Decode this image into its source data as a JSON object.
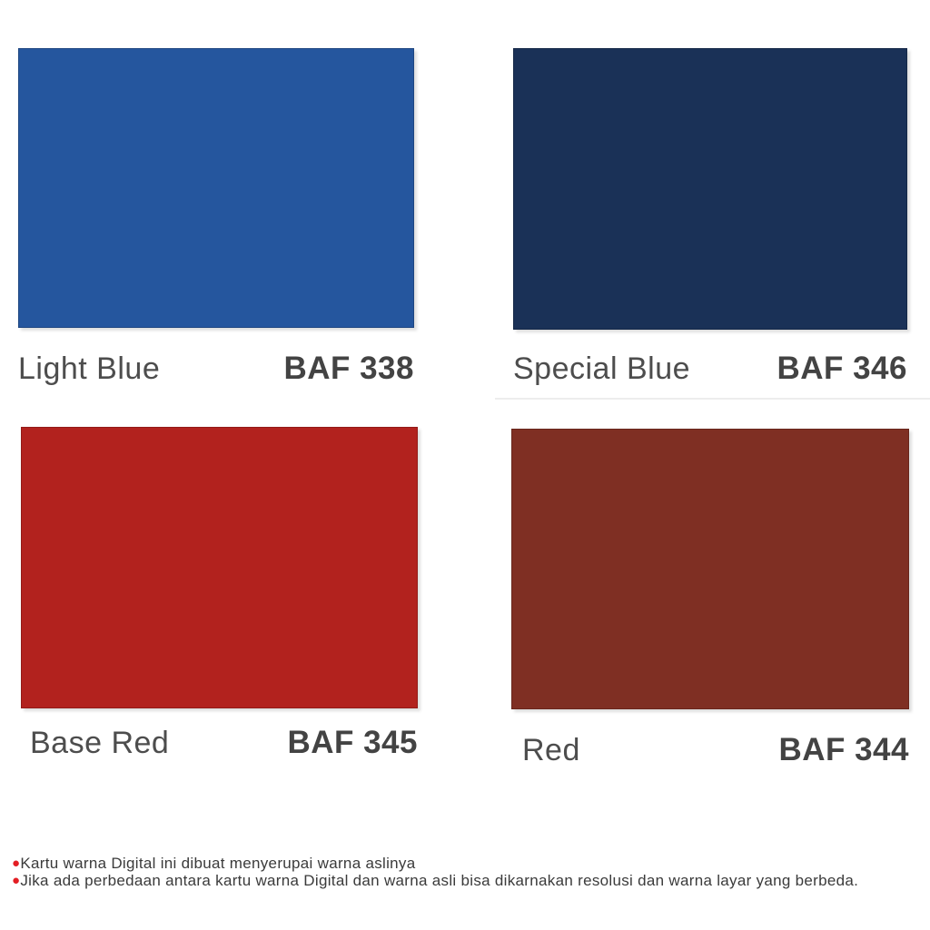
{
  "swatches": [
    {
      "name": "Light Blue",
      "code": "BAF 338",
      "color": "#25569e"
    },
    {
      "name": "Special Blue",
      "code": "BAF 346",
      "color": "#1a3157"
    },
    {
      "name": "Base Red",
      "code": "BAF 345",
      "color": "#b2221e"
    },
    {
      "name": "Red",
      "code": "BAF 344",
      "color": "#7f2f23"
    }
  ],
  "footnotes": {
    "bullet_color": "#e31e24",
    "lines": [
      "Kartu warna Digital ini dibuat menyerupai warna aslinya",
      "Jika ada perbedaan antara kartu warna Digital dan warna asli bisa dikarnakan resolusi dan warna layar yang berbeda."
    ]
  }
}
